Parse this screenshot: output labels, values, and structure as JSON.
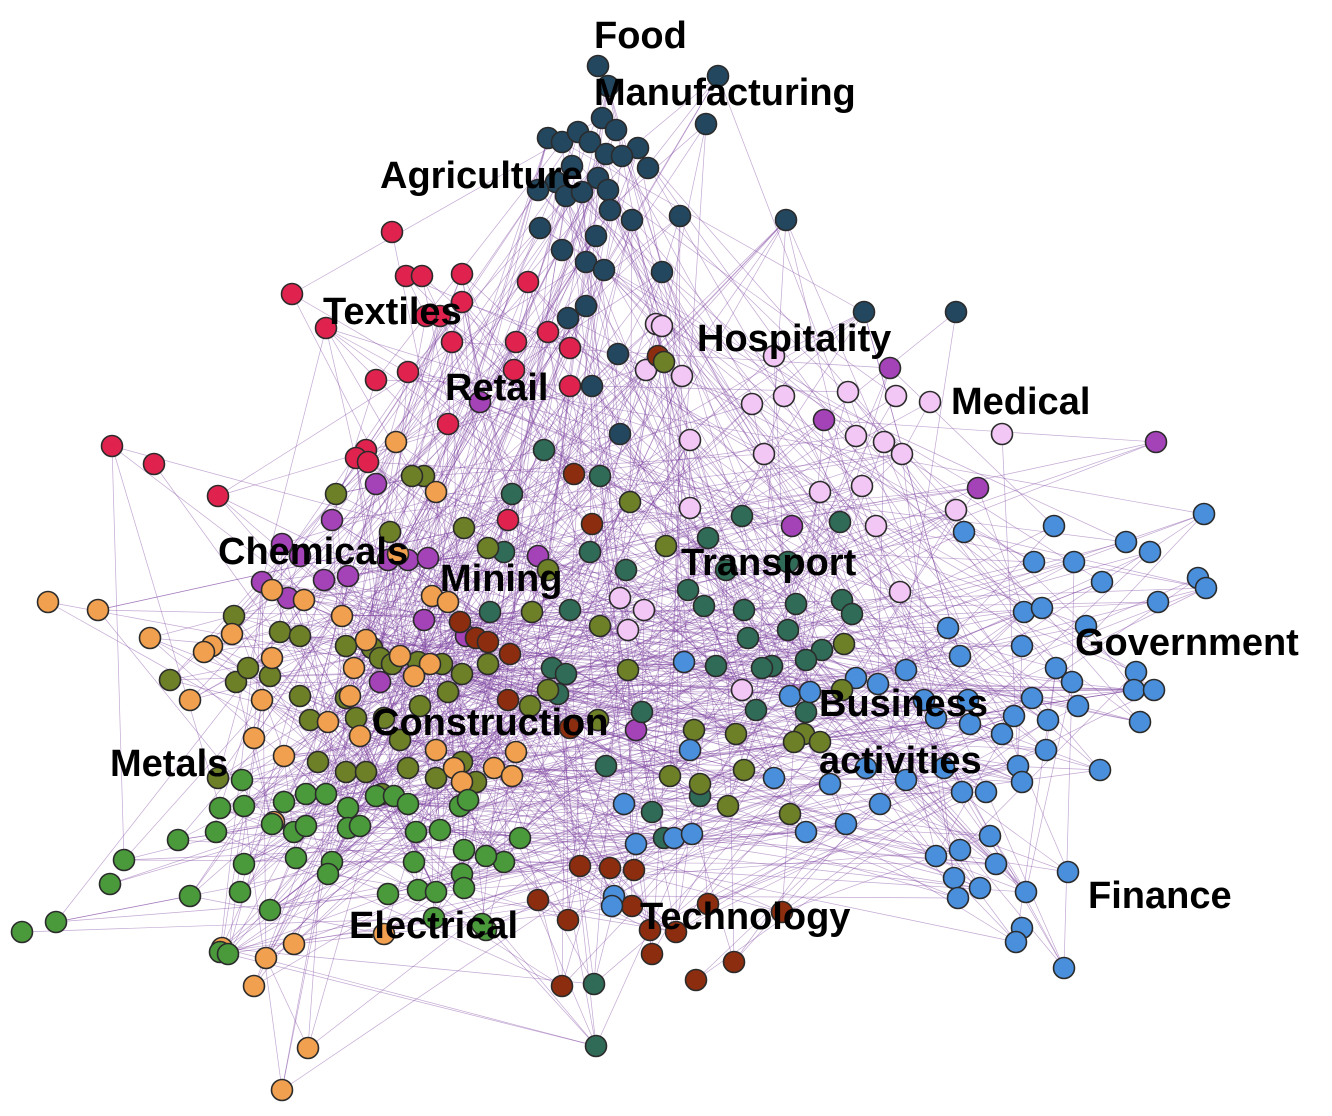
{
  "diagram": {
    "type": "network-graph",
    "clusters": [
      {
        "key": "food_manufacturing",
        "color": "#23475f",
        "label_lines": [
          "Food",
          "Manufacturing"
        ]
      },
      {
        "key": "agriculture",
        "color": "#23475f",
        "label_lines": [
          "Agriculture"
        ]
      },
      {
        "key": "textiles",
        "color": "#e0234e",
        "label_lines": [
          "Textiles"
        ]
      },
      {
        "key": "retail",
        "color": "#e0234e",
        "label_lines": [
          "Retail"
        ]
      },
      {
        "key": "hospitality",
        "color": "#f3c7f5",
        "label_lines": [
          "Hospitality"
        ]
      },
      {
        "key": "medical",
        "color": "#f3c7f5",
        "label_lines": [
          "Medical"
        ]
      },
      {
        "key": "chemicals",
        "color": "#a443b8",
        "label_lines": [
          "Chemicals"
        ]
      },
      {
        "key": "mining",
        "color": "#8b2d0e",
        "label_lines": [
          "Mining"
        ]
      },
      {
        "key": "transport",
        "color": "#2f6b57",
        "label_lines": [
          "Transport"
        ]
      },
      {
        "key": "government",
        "color": "#4a8fdc",
        "label_lines": [
          "Government"
        ]
      },
      {
        "key": "business",
        "color": "#6d7f27",
        "label_lines": [
          "Business",
          "activities"
        ]
      },
      {
        "key": "construction",
        "color": "#6d7f27",
        "label_lines": [
          "Construction"
        ]
      },
      {
        "key": "metals",
        "color": "#f0a04e",
        "label_lines": [
          "Metals"
        ]
      },
      {
        "key": "finance",
        "color": "#4a8fdc",
        "label_lines": [
          "Finance"
        ]
      },
      {
        "key": "electrical",
        "color": "#4a9a3c",
        "label_lines": [
          "Electrical"
        ]
      },
      {
        "key": "technology",
        "color": "#8b2d0e",
        "label_lines": [
          "Technology"
        ]
      }
    ],
    "edge_color": "#7b3f9e"
  }
}
